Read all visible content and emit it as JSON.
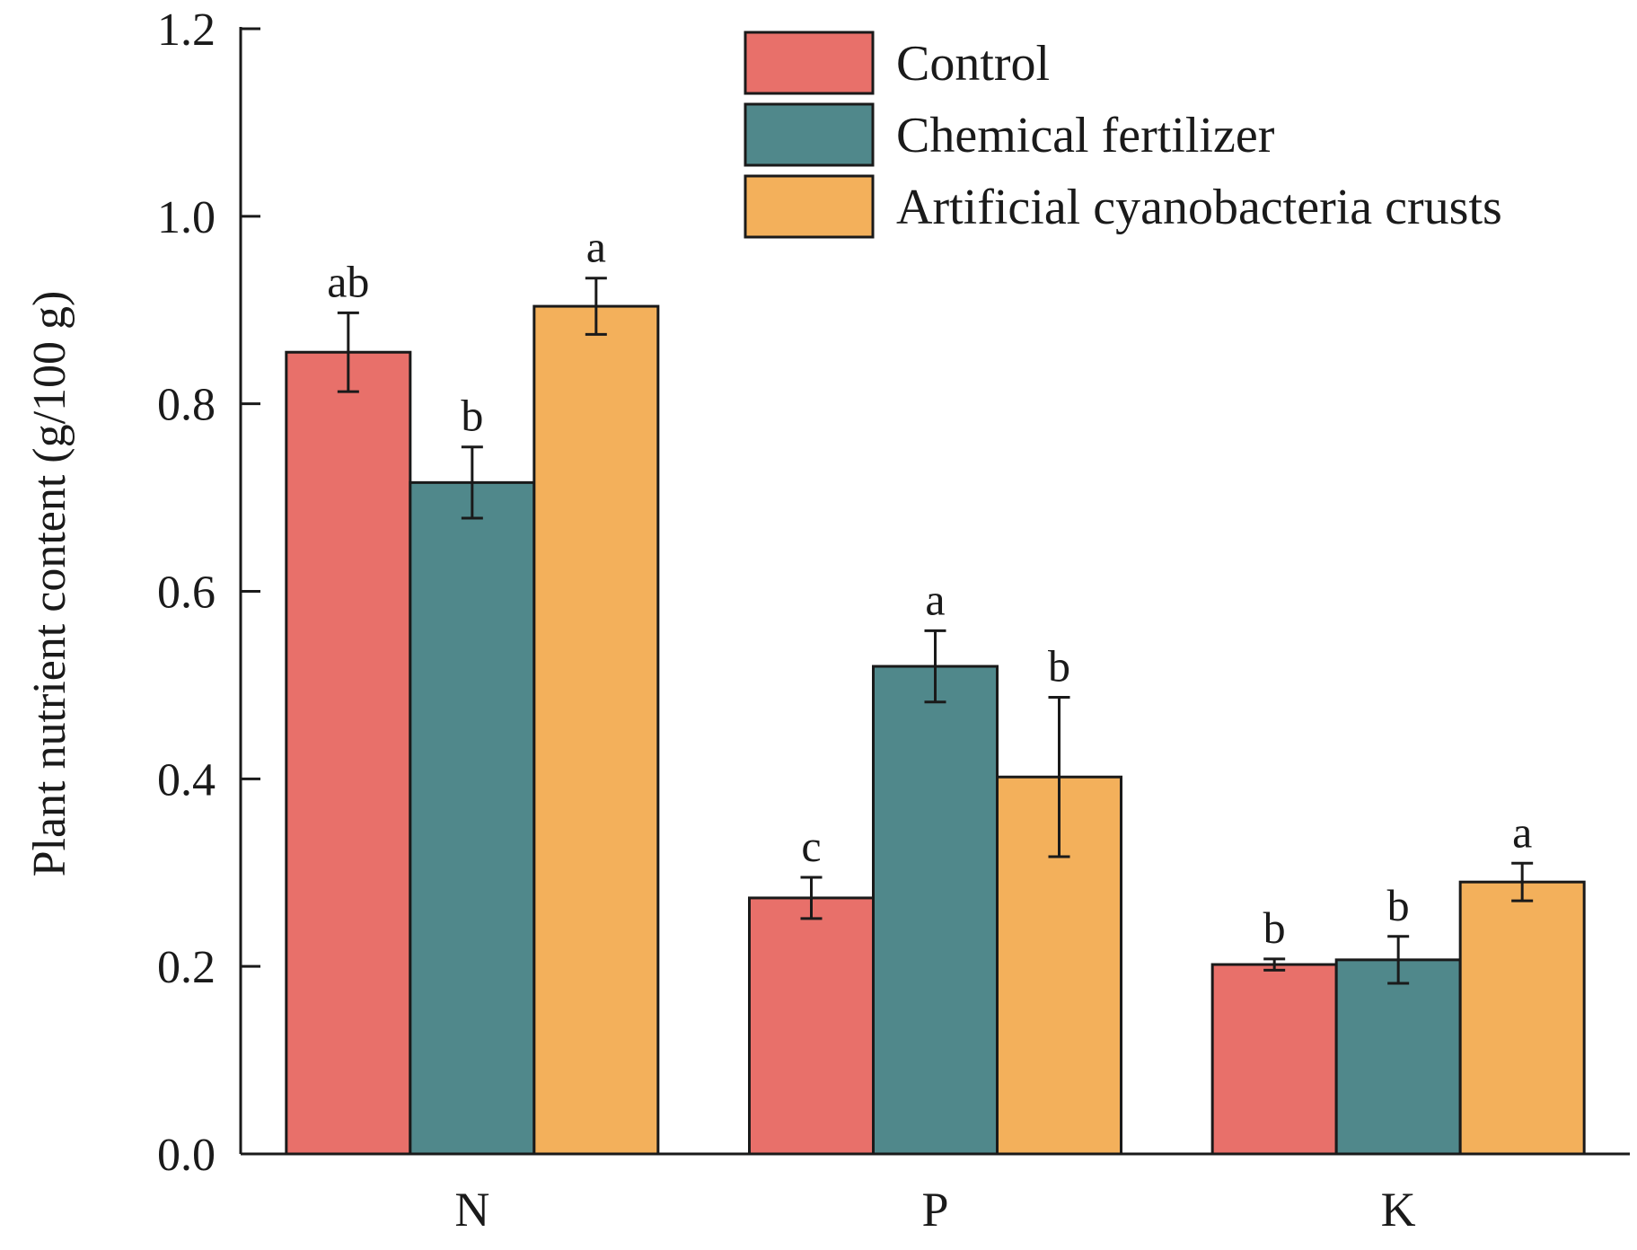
{
  "chart_data": {
    "type": "bar",
    "title": "",
    "xlabel": "",
    "ylabel": "Plant nutrient content (g/100 g)",
    "ylim": [
      0,
      1.2
    ],
    "yticks": [
      "0.0",
      "0.2",
      "0.4",
      "0.6",
      "0.8",
      "1.0",
      "1.2"
    ],
    "categories": [
      "N",
      "P",
      "K"
    ],
    "legend_position": "top-right",
    "grid": false,
    "series": [
      {
        "name": "Control",
        "color": "#e8706a",
        "values": [
          0.855,
          0.273,
          0.202
        ],
        "errors": [
          0.042,
          0.022,
          0.006
        ],
        "letters": [
          "ab",
          "c",
          "b"
        ]
      },
      {
        "name": "Chemical fertilizer",
        "color": "#50888b",
        "values": [
          0.716,
          0.52,
          0.207
        ],
        "errors": [
          0.038,
          0.038,
          0.025
        ],
        "letters": [
          "b",
          "a",
          "b"
        ]
      },
      {
        "name": "Artificial cyanobacteria crusts",
        "color": "#f3b05b",
        "values": [
          0.904,
          0.402,
          0.29
        ],
        "errors": [
          0.03,
          0.085,
          0.02
        ],
        "letters": [
          "a",
          "b",
          "a"
        ]
      }
    ]
  }
}
